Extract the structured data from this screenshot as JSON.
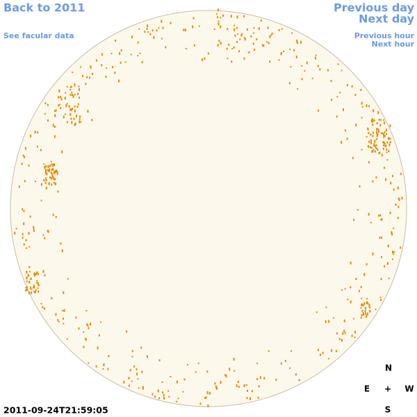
{
  "navigation": {
    "back": "Back to 2011",
    "facular": "See facular data",
    "previous_day": "Previous day",
    "next_day": "Next day",
    "previous_hour": "Previous hour",
    "next_hour": "Next hour"
  },
  "timestamp": "2011-09-24T21:59:05",
  "compass": {
    "north": "N",
    "east": "E",
    "center": "+",
    "west": "W",
    "south": "S"
  }
}
